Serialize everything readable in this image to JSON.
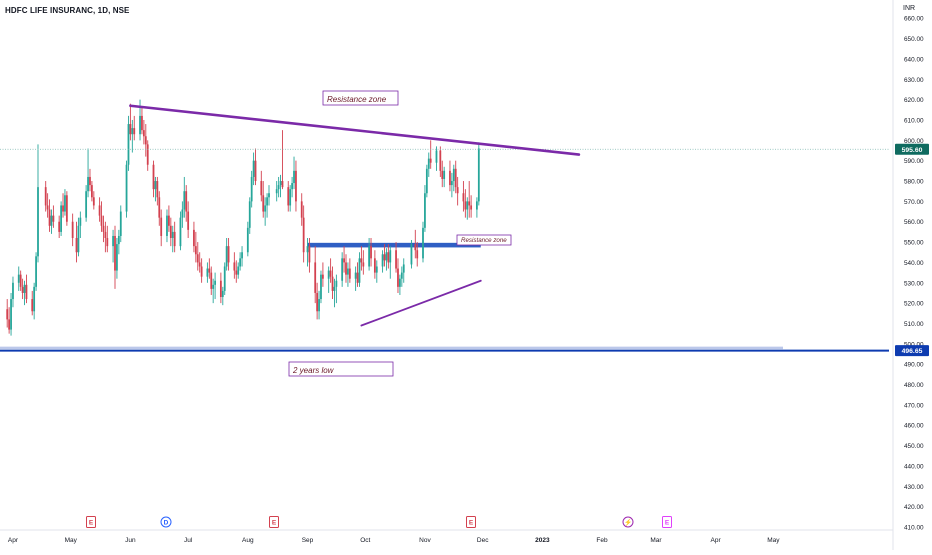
{
  "header": {
    "symbol_title": "HDFC LIFE INSURANC, 1D, NSE",
    "currency": "INR"
  },
  "colors": {
    "up": "#26a69a",
    "down": "#d3414f",
    "trend_line": "#7b2aa8",
    "zone": "#2f5fc4",
    "low_line": "#0d3bb0",
    "price_badge": "#0f6b60",
    "low_badge": "#0d3bb0"
  },
  "price_axis": {
    "labels": [
      "660.00",
      "650.00",
      "640.00",
      "630.00",
      "620.00",
      "610.00",
      "600.00",
      "590.00",
      "580.00",
      "570.00",
      "560.00",
      "550.00",
      "540.00",
      "530.00",
      "520.00",
      "510.00",
      "500.00",
      "490.00",
      "480.00",
      "470.00",
      "460.00",
      "450.00",
      "440.00",
      "430.00",
      "420.00",
      "410.00"
    ],
    "current_price": "595.60",
    "low_price": "496.65"
  },
  "time_axis": [
    "Apr",
    "May",
    "Jun",
    "Jul",
    "Aug",
    "Sep",
    "Oct",
    "Nov",
    "Dec",
    "2023",
    "Feb",
    "Mar",
    "Apr",
    "May"
  ],
  "annotations": {
    "resistance_top": "Resistance zone",
    "resistance_mid": "Resistance zone",
    "two_year_low": "2 years low"
  },
  "event_markers": [
    "E",
    "D",
    "E",
    "E",
    "⚡",
    "E"
  ],
  "chart_data": {
    "type": "candlestick",
    "title": "HDFC LIFE INSURANC, 1D, NSE",
    "ylabel": "INR",
    "ylim": [
      405,
      666
    ],
    "trend_lines": [
      {
        "name": "resistance-trendline",
        "from": [
          "2022-06-01",
          617
        ],
        "to": [
          "2023-01-20",
          593
        ]
      },
      {
        "name": "support-trendline",
        "from": [
          "2022-09-29",
          509
        ],
        "to": [
          "2022-11-30",
          531
        ]
      }
    ],
    "zones": [
      {
        "label": "Resistance zone",
        "from": "2022-09-01",
        "to": "2022-11-30",
        "price": 548.5
      }
    ],
    "horizontal_lines": [
      {
        "label": "2 years low",
        "price": 496.65
      }
    ],
    "last_price": 595.6,
    "candles": [
      [
        "2022-03-29",
        517,
        522,
        508,
        512
      ],
      [
        "2022-03-30",
        512,
        518,
        505,
        507
      ],
      [
        "2022-03-31",
        507,
        525,
        504,
        522
      ],
      [
        "2022-04-01",
        522,
        533,
        518,
        530
      ],
      [
        "2022-04-04",
        530,
        538,
        526,
        534
      ],
      [
        "2022-04-05",
        534,
        536,
        526,
        528
      ],
      [
        "2022-04-06",
        528,
        532,
        522,
        525
      ],
      [
        "2022-04-07",
        525,
        531,
        519,
        529
      ],
      [
        "2022-04-08",
        529,
        534,
        520,
        522
      ],
      [
        "2022-04-11",
        522,
        526,
        514,
        516
      ],
      [
        "2022-04-12",
        516,
        530,
        512,
        528
      ],
      [
        "2022-04-13",
        528,
        545,
        526,
        543
      ],
      [
        "2022-04-14",
        543,
        598,
        540,
        577
      ],
      [
        "2022-04-18",
        577,
        580,
        565,
        568
      ],
      [
        "2022-04-19",
        568,
        574,
        562,
        566
      ],
      [
        "2022-04-20",
        566,
        571,
        555,
        558
      ],
      [
        "2022-04-21",
        558,
        566,
        554,
        563
      ],
      [
        "2022-04-22",
        563,
        568,
        557,
        560
      ],
      [
        "2022-04-25",
        560,
        563,
        552,
        555
      ],
      [
        "2022-04-26",
        555,
        570,
        553,
        568
      ],
      [
        "2022-04-27",
        568,
        574,
        562,
        565
      ],
      [
        "2022-04-28",
        565,
        576,
        563,
        573
      ],
      [
        "2022-04-29",
        573,
        575,
        558,
        560
      ],
      [
        "2022-05-02",
        560,
        564,
        548,
        552
      ],
      [
        "2022-05-04",
        552,
        560,
        540,
        545
      ],
      [
        "2022-05-05",
        545,
        562,
        543,
        558
      ],
      [
        "2022-05-06",
        558,
        565,
        552,
        562
      ],
      [
        "2022-05-09",
        562,
        578,
        560,
        575
      ],
      [
        "2022-05-10",
        575,
        596,
        572,
        582
      ],
      [
        "2022-05-11",
        582,
        586,
        575,
        578
      ],
      [
        "2022-05-12",
        578,
        580,
        570,
        572
      ],
      [
        "2022-05-13",
        572,
        575,
        566,
        568
      ],
      [
        "2022-05-16",
        568,
        572,
        560,
        563
      ],
      [
        "2022-05-17",
        563,
        570,
        555,
        558
      ],
      [
        "2022-05-18",
        558,
        563,
        550,
        555
      ],
      [
        "2022-05-19",
        555,
        560,
        545,
        552
      ],
      [
        "2022-05-20",
        552,
        558,
        545,
        548
      ],
      [
        "2022-05-23",
        548,
        556,
        540,
        553
      ],
      [
        "2022-05-24",
        553,
        558,
        527,
        536
      ],
      [
        "2022-05-25",
        536,
        552,
        532,
        549
      ],
      [
        "2022-05-26",
        549,
        556,
        544,
        553
      ],
      [
        "2022-05-27",
        553,
        568,
        550,
        565
      ],
      [
        "2022-05-30",
        565,
        590,
        562,
        588
      ],
      [
        "2022-05-31",
        588,
        612,
        585,
        608
      ],
      [
        "2022-06-01",
        608,
        618,
        600,
        603
      ],
      [
        "2022-06-02",
        603,
        610,
        594,
        606
      ],
      [
        "2022-06-03",
        606,
        612,
        600,
        603
      ],
      [
        "2022-06-06",
        603,
        620,
        600,
        612
      ],
      [
        "2022-06-07",
        612,
        616,
        603,
        605
      ],
      [
        "2022-06-08",
        605,
        610,
        598,
        602
      ],
      [
        "2022-06-09",
        602,
        608,
        592,
        598
      ],
      [
        "2022-06-10",
        598,
        600,
        585,
        588
      ],
      [
        "2022-06-13",
        588,
        590,
        572,
        576
      ],
      [
        "2022-06-14",
        576,
        582,
        570,
        580
      ],
      [
        "2022-06-15",
        580,
        582,
        568,
        572
      ],
      [
        "2022-06-16",
        572,
        575,
        558,
        562
      ],
      [
        "2022-06-17",
        562,
        566,
        548,
        553
      ],
      [
        "2022-06-20",
        553,
        566,
        550,
        563
      ],
      [
        "2022-06-21",
        563,
        568,
        555,
        558
      ],
      [
        "2022-06-22",
        558,
        562,
        548,
        552
      ],
      [
        "2022-06-23",
        552,
        558,
        545,
        555
      ],
      [
        "2022-06-24",
        555,
        560,
        545,
        548
      ],
      [
        "2022-06-27",
        548,
        565,
        546,
        562
      ],
      [
        "2022-06-28",
        562,
        570,
        557,
        566
      ],
      [
        "2022-06-29",
        566,
        582,
        562,
        575
      ],
      [
        "2022-06-30",
        575,
        578,
        560,
        565
      ],
      [
        "2022-07-01",
        565,
        570,
        552,
        556
      ],
      [
        "2022-07-04",
        556,
        560,
        545,
        548
      ],
      [
        "2022-07-05",
        548,
        555,
        540,
        544
      ],
      [
        "2022-07-06",
        544,
        550,
        536,
        540
      ],
      [
        "2022-07-07",
        540,
        545,
        535,
        538
      ],
      [
        "2022-07-08",
        538,
        542,
        530,
        533
      ],
      [
        "2022-07-11",
        533,
        540,
        530,
        537
      ],
      [
        "2022-07-12",
        537,
        542,
        532,
        535
      ],
      [
        "2022-07-13",
        535,
        538,
        524,
        527
      ],
      [
        "2022-07-14",
        527,
        532,
        520,
        529
      ],
      [
        "2022-07-15",
        529,
        535,
        522,
        531
      ],
      [
        "2022-07-18",
        531,
        535,
        520,
        523
      ],
      [
        "2022-07-19",
        523,
        528,
        519,
        526
      ],
      [
        "2022-07-20",
        526,
        540,
        524,
        538
      ],
      [
        "2022-07-21",
        538,
        552,
        536,
        548
      ],
      [
        "2022-07-22",
        548,
        552,
        536,
        540
      ],
      [
        "2022-07-25",
        540,
        545,
        532,
        536
      ],
      [
        "2022-07-26",
        536,
        541,
        530,
        534
      ],
      [
        "2022-07-27",
        534,
        540,
        532,
        538
      ],
      [
        "2022-07-28",
        538,
        545,
        536,
        542
      ],
      [
        "2022-07-29",
        542,
        548,
        538,
        545
      ],
      [
        "2022-08-01",
        545,
        560,
        543,
        557
      ],
      [
        "2022-08-02",
        557,
        572,
        554,
        570
      ],
      [
        "2022-08-03",
        570,
        585,
        567,
        582
      ],
      [
        "2022-08-04",
        582,
        594,
        578,
        590
      ],
      [
        "2022-08-05",
        590,
        596,
        578,
        580
      ],
      [
        "2022-08-08",
        580,
        585,
        570,
        573
      ],
      [
        "2022-08-09",
        573,
        580,
        562,
        565
      ],
      [
        "2022-08-10",
        565,
        572,
        558,
        568
      ],
      [
        "2022-08-11",
        568,
        574,
        562,
        572
      ],
      [
        "2022-08-12",
        572,
        578,
        568,
        574
      ],
      [
        "2022-08-16",
        574,
        580,
        570,
        576
      ],
      [
        "2022-08-17",
        576,
        582,
        572,
        578
      ],
      [
        "2022-08-18",
        578,
        583,
        572,
        580
      ],
      [
        "2022-08-19",
        580,
        605,
        576,
        577
      ],
      [
        "2022-08-22",
        577,
        580,
        565,
        568
      ],
      [
        "2022-08-23",
        568,
        578,
        565,
        576
      ],
      [
        "2022-08-24",
        576,
        582,
        572,
        579
      ],
      [
        "2022-08-25",
        579,
        592,
        576,
        585
      ],
      [
        "2022-08-26",
        585,
        590,
        565,
        570
      ],
      [
        "2022-08-29",
        570,
        574,
        558,
        562
      ],
      [
        "2022-08-30",
        562,
        568,
        540,
        545
      ],
      [
        "2022-09-01",
        545,
        552,
        538,
        548
      ],
      [
        "2022-09-02",
        548,
        552,
        535,
        540
      ],
      [
        "2022-09-05",
        540,
        548,
        520,
        525
      ],
      [
        "2022-09-06",
        525,
        530,
        512,
        516
      ],
      [
        "2022-09-07",
        516,
        526,
        512,
        522
      ],
      [
        "2022-09-08",
        522,
        536,
        520,
        534
      ],
      [
        "2022-09-09",
        534,
        540,
        528,
        532
      ],
      [
        "2022-09-12",
        532,
        538,
        525,
        536
      ],
      [
        "2022-09-13",
        536,
        542,
        530,
        533
      ],
      [
        "2022-09-14",
        533,
        538,
        522,
        526
      ],
      [
        "2022-09-15",
        526,
        532,
        518,
        528
      ],
      [
        "2022-09-16",
        528,
        534,
        520,
        531
      ],
      [
        "2022-09-19",
        531,
        545,
        528,
        542
      ],
      [
        "2022-09-20",
        542,
        548,
        535,
        540
      ],
      [
        "2022-09-21",
        540,
        544,
        530,
        534
      ],
      [
        "2022-09-22",
        534,
        540,
        528,
        537
      ],
      [
        "2022-09-23",
        537,
        542,
        530,
        532
      ],
      [
        "2022-09-26",
        532,
        538,
        526,
        535
      ],
      [
        "2022-09-27",
        535,
        540,
        528,
        530
      ],
      [
        "2022-09-28",
        530,
        545,
        528,
        542
      ],
      [
        "2022-09-29",
        542,
        548,
        536,
        540
      ],
      [
        "2022-09-30",
        540,
        546,
        534,
        538
      ],
      [
        "2022-10-03",
        538,
        552,
        536,
        548
      ],
      [
        "2022-10-04",
        548,
        552,
        538,
        542
      ],
      [
        "2022-10-06",
        542,
        546,
        532,
        535
      ],
      [
        "2022-10-07",
        535,
        541,
        530,
        538
      ],
      [
        "2022-10-10",
        538,
        546,
        535,
        544
      ],
      [
        "2022-10-11",
        544,
        549,
        538,
        541
      ],
      [
        "2022-10-12",
        541,
        547,
        536,
        545
      ],
      [
        "2022-10-13",
        545,
        549,
        537,
        540
      ],
      [
        "2022-10-14",
        540,
        548,
        532,
        546
      ],
      [
        "2022-10-17",
        546,
        550,
        535,
        537
      ],
      [
        "2022-10-18",
        537,
        542,
        525,
        528
      ],
      [
        "2022-10-19",
        528,
        534,
        524,
        532
      ],
      [
        "2022-10-20",
        532,
        538,
        528,
        535
      ],
      [
        "2022-10-21",
        535,
        542,
        530,
        539
      ],
      [
        "2022-10-25",
        539,
        551,
        537,
        549
      ],
      [
        "2022-10-27",
        549,
        556,
        542,
        546
      ],
      [
        "2022-10-28",
        546,
        550,
        538,
        542
      ],
      [
        "2022-10-31",
        542,
        560,
        540,
        557
      ],
      [
        "2022-11-01",
        557,
        578,
        555,
        574
      ],
      [
        "2022-11-02",
        574,
        588,
        572,
        586
      ],
      [
        "2022-11-03",
        586,
        594,
        582,
        591
      ],
      [
        "2022-11-04",
        591,
        600,
        586,
        589
      ],
      [
        "2022-11-07",
        589,
        597,
        585,
        595
      ],
      [
        "2022-11-09",
        595,
        597,
        582,
        585
      ],
      [
        "2022-11-10",
        585,
        590,
        577,
        581
      ],
      [
        "2022-11-11",
        581,
        587,
        577,
        585
      ],
      [
        "2022-11-14",
        585,
        590,
        575,
        578
      ],
      [
        "2022-11-15",
        578,
        584,
        572,
        580
      ],
      [
        "2022-11-16",
        580,
        588,
        575,
        586
      ],
      [
        "2022-11-17",
        586,
        590,
        574,
        577
      ],
      [
        "2022-11-18",
        577,
        582,
        568,
        574
      ],
      [
        "2022-11-21",
        574,
        580,
        565,
        570
      ],
      [
        "2022-11-22",
        570,
        576,
        562,
        566
      ],
      [
        "2022-11-23",
        566,
        572,
        561,
        570
      ],
      [
        "2022-11-24",
        570,
        580,
        562,
        568
      ],
      [
        "2022-11-25",
        568,
        573,
        562,
        566
      ],
      [
        "2022-11-28",
        566,
        572,
        562,
        570
      ],
      [
        "2022-11-29",
        570,
        599,
        568,
        596
      ]
    ]
  }
}
